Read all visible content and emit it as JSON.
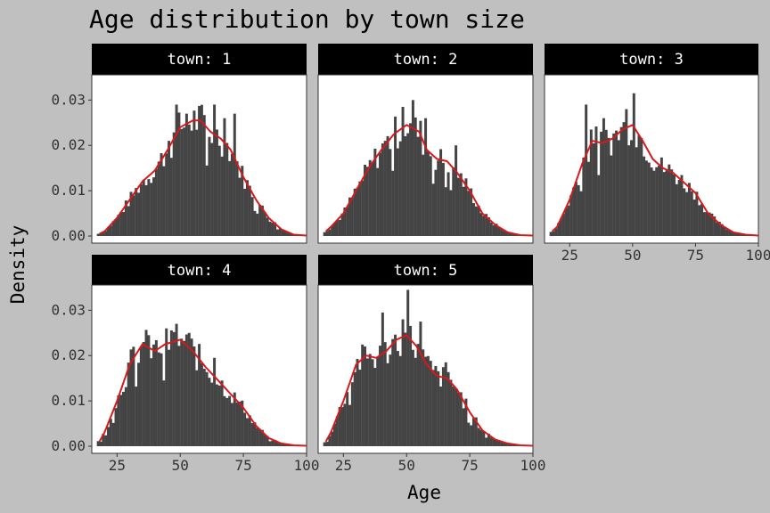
{
  "chart_data": {
    "type": "histogram+density",
    "title": "Age distribution by town size",
    "xlabel": "Age",
    "ylabel": "Density",
    "xlim": [
      15,
      100
    ],
    "ylim": [
      0,
      0.034
    ],
    "x_ticks": [
      25,
      50,
      75,
      100
    ],
    "y_ticks": [
      0.0,
      0.01,
      0.02,
      0.03
    ],
    "y_tick_labels": [
      "0.00",
      "0.01",
      "0.02",
      "0.03"
    ],
    "bin_width": 1,
    "colors": {
      "bars": "#444444",
      "density": "#d7191c",
      "strip": "#000000",
      "panel": "#ffffff",
      "background": "#c0c0c0"
    },
    "facets": [
      {
        "label": "town: 1",
        "density": [
          [
            18,
            0.0005
          ],
          [
            20,
            0.001
          ],
          [
            25,
            0.004
          ],
          [
            30,
            0.008
          ],
          [
            35,
            0.012
          ],
          [
            40,
            0.0145
          ],
          [
            45,
            0.019
          ],
          [
            50,
            0.024
          ],
          [
            55,
            0.0255
          ],
          [
            58,
            0.0255
          ],
          [
            62,
            0.023
          ],
          [
            66,
            0.0215
          ],
          [
            70,
            0.019
          ],
          [
            75,
            0.013
          ],
          [
            80,
            0.008
          ],
          [
            85,
            0.004
          ],
          [
            90,
            0.0015
          ],
          [
            95,
            0.0003
          ],
          [
            100,
            0.0001
          ]
        ],
        "spikes": [
          [
            48,
            0.029
          ],
          [
            52,
            0.027
          ],
          [
            63,
            0.029
          ],
          [
            67,
            0.026
          ],
          [
            71,
            0.027
          ],
          [
            45,
            0.021
          ]
        ]
      },
      {
        "label": "town: 2",
        "density": [
          [
            18,
            0.001
          ],
          [
            20,
            0.002
          ],
          [
            25,
            0.005
          ],
          [
            30,
            0.01
          ],
          [
            35,
            0.015
          ],
          [
            40,
            0.019
          ],
          [
            45,
            0.0225
          ],
          [
            50,
            0.0245
          ],
          [
            55,
            0.023
          ],
          [
            58,
            0.019
          ],
          [
            62,
            0.017
          ],
          [
            66,
            0.0165
          ],
          [
            70,
            0.014
          ],
          [
            75,
            0.01
          ],
          [
            80,
            0.005
          ],
          [
            85,
            0.0025
          ],
          [
            90,
            0.0008
          ],
          [
            95,
            0.0002
          ],
          [
            100,
            0.0001
          ]
        ],
        "spikes": [
          [
            52,
            0.03
          ],
          [
            48,
            0.0285
          ],
          [
            57,
            0.026
          ],
          [
            41,
            0.021
          ],
          [
            69,
            0.02
          ]
        ]
      },
      {
        "label": "town: 3",
        "density": [
          [
            18,
            0.001
          ],
          [
            20,
            0.002
          ],
          [
            25,
            0.008
          ],
          [
            30,
            0.016
          ],
          [
            34,
            0.021
          ],
          [
            38,
            0.0205
          ],
          [
            42,
            0.0215
          ],
          [
            46,
            0.0235
          ],
          [
            50,
            0.0245
          ],
          [
            54,
            0.021
          ],
          [
            58,
            0.017
          ],
          [
            62,
            0.015
          ],
          [
            66,
            0.014
          ],
          [
            70,
            0.012
          ],
          [
            75,
            0.0095
          ],
          [
            80,
            0.005
          ],
          [
            85,
            0.0025
          ],
          [
            90,
            0.0008
          ],
          [
            95,
            0.0003
          ],
          [
            100,
            0.0001
          ]
        ],
        "spikes": [
          [
            31,
            0.029
          ],
          [
            50,
            0.0315
          ],
          [
            33,
            0.0235
          ],
          [
            47,
            0.028
          ],
          [
            38,
            0.026
          ]
        ]
      },
      {
        "label": "town: 4",
        "density": [
          [
            18,
            0.001
          ],
          [
            20,
            0.003
          ],
          [
            25,
            0.01
          ],
          [
            30,
            0.018
          ],
          [
            35,
            0.0225
          ],
          [
            40,
            0.021
          ],
          [
            44,
            0.0225
          ],
          [
            50,
            0.0235
          ],
          [
            55,
            0.021
          ],
          [
            60,
            0.0175
          ],
          [
            65,
            0.0145
          ],
          [
            70,
            0.0115
          ],
          [
            75,
            0.0085
          ],
          [
            80,
            0.0045
          ],
          [
            85,
            0.0018
          ],
          [
            90,
            0.0006
          ],
          [
            95,
            0.0002
          ],
          [
            100,
            0.0001
          ]
        ],
        "spikes": [
          [
            48,
            0.027
          ],
          [
            44,
            0.026
          ],
          [
            37,
            0.0245
          ],
          [
            53,
            0.025
          ],
          [
            63,
            0.0195
          ]
        ]
      },
      {
        "label": "town: 5",
        "density": [
          [
            18,
            0.001
          ],
          [
            20,
            0.003
          ],
          [
            25,
            0.01
          ],
          [
            30,
            0.018
          ],
          [
            34,
            0.02
          ],
          [
            38,
            0.0195
          ],
          [
            42,
            0.021
          ],
          [
            46,
            0.0235
          ],
          [
            50,
            0.0245
          ],
          [
            54,
            0.022
          ],
          [
            58,
            0.018
          ],
          [
            62,
            0.0155
          ],
          [
            66,
            0.015
          ],
          [
            70,
            0.0125
          ],
          [
            75,
            0.0075
          ],
          [
            80,
            0.0035
          ],
          [
            85,
            0.0015
          ],
          [
            90,
            0.0006
          ],
          [
            95,
            0.0002
          ],
          [
            100,
            0.0001
          ]
        ],
        "spikes": [
          [
            50,
            0.0345
          ],
          [
            40,
            0.0295
          ],
          [
            48,
            0.028
          ],
          [
            55,
            0.0275
          ],
          [
            65,
            0.0185
          ]
        ]
      }
    ]
  }
}
